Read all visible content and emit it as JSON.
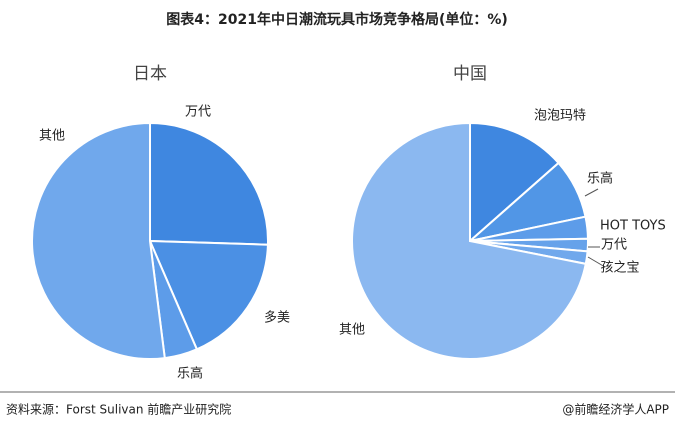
{
  "header": {
    "title": "图表4：2021年中日潮流玩具市场竞争格局(单位：%)"
  },
  "chart_data": [
    {
      "type": "pie",
      "title": "日本",
      "categories": [
        "万代",
        "多美",
        "乐高",
        "其他"
      ],
      "values": [
        25.5,
        18,
        4.5,
        52
      ],
      "colors": [
        "#3f87e0",
        "#4b90e4",
        "#5d9ce9",
        "#70a8ec"
      ]
    },
    {
      "type": "pie",
      "title": "中国",
      "categories": [
        "泡泡玛特",
        "乐高",
        "HOT TOYS",
        "万代",
        "孩之宝",
        "其他"
      ],
      "values": [
        13.5,
        8.2,
        3,
        1.7,
        1.7,
        71.9
      ],
      "colors": [
        "#3f87e0",
        "#5196e6",
        "#5d9ce9",
        "#66a2ea",
        "#70a8ec",
        "#8bb8f0"
      ]
    }
  ],
  "footer": {
    "source": "资料来源：Forst Sulivan 前瞻产业研究院",
    "credit": "@前瞻经济学人APP"
  }
}
